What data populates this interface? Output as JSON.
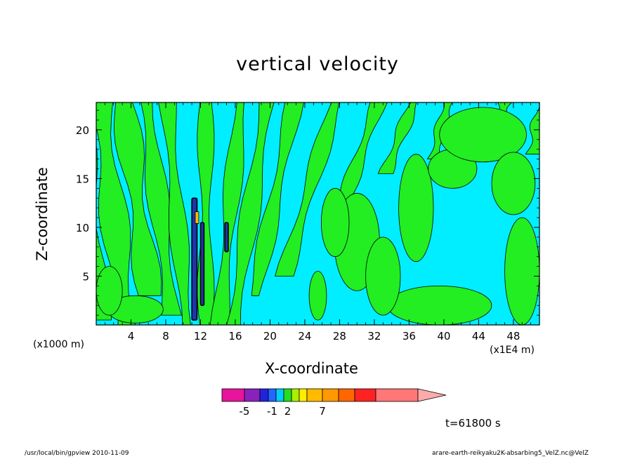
{
  "chart_data": {
    "type": "heatmap",
    "title": "vertical velocity",
    "xlabel": "X-coordinate",
    "ylabel": "Z-coordinate",
    "x_unit_left": "(x1000 m)",
    "x_unit_right": "(x1E4 m)",
    "x_ticks": [
      4,
      8,
      12,
      16,
      20,
      24,
      28,
      32,
      36,
      40,
      44,
      48
    ],
    "y_ticks": [
      5,
      10,
      15,
      20
    ],
    "xlim": [
      0,
      51
    ],
    "ylim": [
      0,
      22.8
    ],
    "background_color": "#00eeff",
    "positive_color": "#22ee22",
    "colorbar": {
      "colors": [
        "#e8149c",
        "#8822bb",
        "#2222dd",
        "#2266ff",
        "#00ccff",
        "#22dd22",
        "#aaee00",
        "#ffee00",
        "#ffbb00",
        "#ff9900",
        "#ff6600",
        "#ff2222",
        "#ff7777",
        "#ffaaaa"
      ],
      "tick_labels": [
        {
          "label": "-5",
          "index": 1
        },
        {
          "label": "-1",
          "index": 3.5
        },
        {
          "label": "2",
          "index": 5.5
        },
        {
          "label": "7",
          "index": 9
        }
      ]
    },
    "bands": [
      {
        "x": 0.5,
        "x_top": -2.0,
        "w": 1.4,
        "z0": 0.5,
        "z1": 22.8
      },
      {
        "x": 3.5,
        "x_top": 0.5,
        "w": 1.6,
        "z0": 0.0,
        "z1": 22.8
      },
      {
        "x": 6.6,
        "x_top": 3.2,
        "w": 1.5,
        "z0": 3.0,
        "z1": 22.8
      },
      {
        "x": 8.8,
        "x_top": 5.8,
        "w": 1.2,
        "z0": 1.0,
        "z1": 22.8
      },
      {
        "x": 10.4,
        "x_top": 8.2,
        "w": 1.0,
        "z0": 0.0,
        "z1": 22.8
      },
      {
        "x": 12.6,
        "x_top": 12.6,
        "w": 0.9,
        "z0": 0.0,
        "z1": 22.8
      },
      {
        "x": 14.2,
        "x_top": 16.6,
        "w": 1.0,
        "z0": 0.0,
        "z1": 22.8
      },
      {
        "x": 15.8,
        "x_top": 19.6,
        "w": 1.1,
        "z0": 0.0,
        "z1": 22.8
      },
      {
        "x": 17.6,
        "x_top": 22.8,
        "w": 1.0,
        "z0": 3.0,
        "z1": 22.8
      },
      {
        "x": 20.0,
        "x_top": 27.5,
        "w": 1.0,
        "z0": 5.0,
        "z1": 22.8
      },
      {
        "x": 23.5,
        "x_top": 32.5,
        "w": 0.9,
        "z0": 11.0,
        "z1": 22.8
      },
      {
        "x": 26.5,
        "x_top": 36.5,
        "w": 0.8,
        "z0": 15.5,
        "z1": 22.8
      },
      {
        "x": 34.0,
        "x_top": 40.5,
        "w": 0.8,
        "z0": 17.0,
        "z1": 22.8
      },
      {
        "x": 41.0,
        "x_top": 47.0,
        "w": 1.0,
        "z0": 19.0,
        "z1": 22.8
      },
      {
        "x": 46.5,
        "x_top": 51.5,
        "w": 1.0,
        "z0": 17.5,
        "z1": 22.8
      }
    ],
    "patches": [
      {
        "x": 30.0,
        "z": 8.5,
        "rx": 2.6,
        "rz": 5.0
      },
      {
        "x": 25.5,
        "z": 3.0,
        "rx": 1.0,
        "rz": 2.5
      },
      {
        "x": 4.5,
        "z": 1.6,
        "rx": 3.2,
        "rz": 1.4
      },
      {
        "x": 1.5,
        "z": 3.5,
        "rx": 1.5,
        "rz": 2.5
      },
      {
        "x": 39.5,
        "z": 2.0,
        "rx": 6.0,
        "rz": 2.0
      },
      {
        "x": 36.8,
        "z": 12.0,
        "rx": 2.0,
        "rz": 5.5
      },
      {
        "x": 41.0,
        "z": 16.0,
        "rx": 2.8,
        "rz": 2.0
      },
      {
        "x": 44.5,
        "z": 19.5,
        "rx": 5.0,
        "rz": 2.8
      },
      {
        "x": 48.0,
        "z": 14.5,
        "rx": 2.5,
        "rz": 3.2
      },
      {
        "x": 49.0,
        "z": 5.5,
        "rx": 2.0,
        "rz": 5.5
      },
      {
        "x": 33.0,
        "z": 5.0,
        "rx": 2.0,
        "rz": 4.0
      },
      {
        "x": 27.5,
        "z": 10.5,
        "rx": 1.6,
        "rz": 3.5
      }
    ],
    "negative_strips": [
      {
        "x": 11.3,
        "z0": 0.5,
        "z1": 13.0,
        "w": 0.6
      },
      {
        "x": 12.2,
        "z0": 2.0,
        "z1": 10.5,
        "w": 0.4
      },
      {
        "x": 15.0,
        "z0": 7.5,
        "z1": 10.5,
        "w": 0.4
      }
    ],
    "positive_spot": {
      "x": 11.6,
      "z": 11.0,
      "w": 0.4,
      "h": 1.2
    }
  },
  "time_label": "t=61800 s",
  "footer_left": "/usr/local/bin/gpview   2010-11-09",
  "footer_right": "arare-earth-reikyaku2K-absarbing5_VelZ.nc@VelZ"
}
